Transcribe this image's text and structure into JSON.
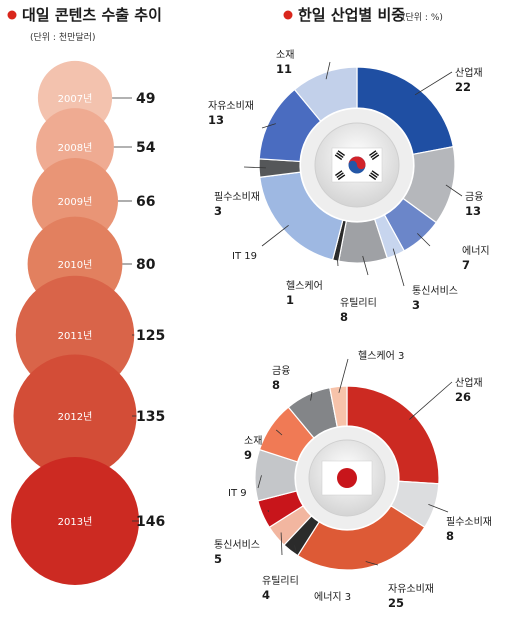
{
  "left": {
    "title": "대일 콘텐츠 수출 추이",
    "unit": "(단위 : 천만달러)"
  },
  "right": {
    "title": "한일 산업별 비중",
    "unit": "(단위 : %)"
  },
  "colors": {
    "title_dot": "#d9261c",
    "pie_ring": "#eeeeee",
    "bubbles": [
      "#f3c2ae",
      "#efab92",
      "#e99576",
      "#e2805f",
      "#d96449",
      "#d34d37",
      "#cc2a22"
    ]
  },
  "chart_data": [
    {
      "type": "bubble",
      "name": "대일 콘텐츠 수출 추이",
      "categories": [
        "2007년",
        "2008년",
        "2009년",
        "2010년",
        "2011년",
        "2012년",
        "2013년"
      ],
      "values": [
        49,
        54,
        66,
        80,
        125,
        135,
        146
      ]
    },
    {
      "type": "pie",
      "slices": [
        {
          "label": "산업재",
          "value": 22,
          "color": "#1f4fa3"
        },
        {
          "label": "금융",
          "value": 13,
          "color": "#b5b7bb"
        },
        {
          "label": "에너지",
          "value": 7,
          "color": "#6b86c9"
        },
        {
          "label": "통신서비스",
          "value": 3,
          "color": "#c7d5ee"
        },
        {
          "label": "유틸리티",
          "value": 8,
          "color": "#9fa1a5"
        },
        {
          "label": "헬스케어",
          "value": 1,
          "color": "#2a2a2a"
        },
        {
          "label": "IT",
          "value": 19,
          "color": "#9eb8e2"
        },
        {
          "label": "필수소비재",
          "value": 3,
          "color": "#555759"
        },
        {
          "label": "자유소비재",
          "value": 13,
          "color": "#4a6cc0"
        },
        {
          "label": "소재",
          "value": 11,
          "color": "#c2d0ea"
        }
      ]
    },
    {
      "type": "pie",
      "slices": [
        {
          "label": "산업재",
          "value": 26,
          "color": "#cc2a22"
        },
        {
          "label": "필수소비재",
          "value": 8,
          "color": "#dcdddf"
        },
        {
          "label": "자유소비재",
          "value": 25,
          "color": "#dd5a36"
        },
        {
          "label": "에너지",
          "value": 3,
          "color": "#2b2b2b"
        },
        {
          "label": "유틸리티",
          "value": 4,
          "color": "#f2b6a0"
        },
        {
          "label": "통신서비스",
          "value": 5,
          "color": "#c8151b"
        },
        {
          "label": "IT",
          "value": 9,
          "color": "#c4c6c9"
        },
        {
          "label": "소재",
          "value": 9,
          "color": "#f07a55"
        },
        {
          "label": "금융",
          "value": 8,
          "color": "#838588"
        },
        {
          "label": "헬스케어",
          "value": 3,
          "color": "#f7c3aa"
        }
      ]
    }
  ]
}
